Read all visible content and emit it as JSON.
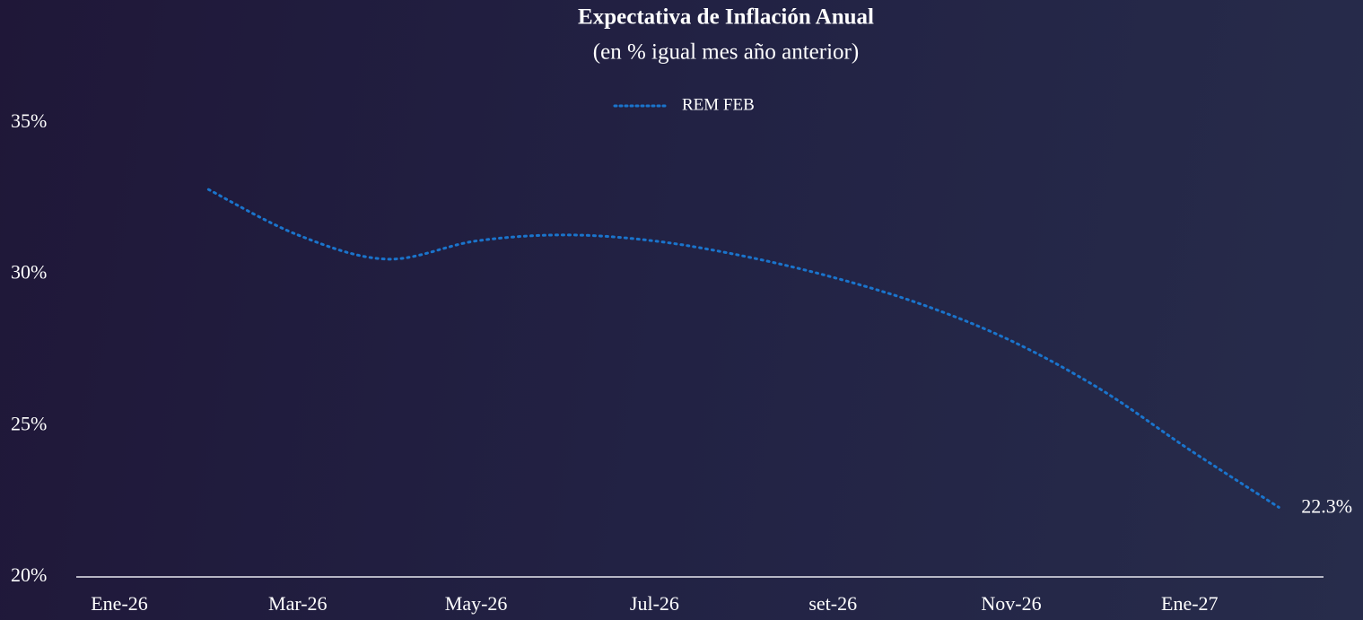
{
  "chart_data": {
    "type": "line",
    "title": "Expectativa de Inflación Anual",
    "subtitle": "(en % igual mes año anterior)",
    "categories": [
      "Ene-26",
      null,
      "Mar-26",
      null,
      "May-26",
      null,
      "Jul-26",
      null,
      "set-26",
      null,
      "Nov-26",
      null,
      "Ene-27",
      null
    ],
    "series": [
      {
        "name": "REM FEB",
        "color": "#1a74cc",
        "values": [
          null,
          32.8,
          31.3,
          30.5,
          31.1,
          31.3,
          31.1,
          30.6,
          29.9,
          29.0,
          27.8,
          26.2,
          24.2,
          22.3
        ],
        "value_labels": [
          null,
          null,
          null,
          null,
          null,
          null,
          null,
          null,
          null,
          null,
          null,
          null,
          null,
          "22.3%"
        ]
      }
    ],
    "ylim": [
      20,
      35
    ],
    "yticks": [
      {
        "value": 20,
        "label": "20%"
      },
      {
        "value": 25,
        "label": "25%"
      },
      {
        "value": 30,
        "label": "30%"
      },
      {
        "value": 35,
        "label": "35%"
      }
    ],
    "grid": false,
    "legend": "top"
  }
}
